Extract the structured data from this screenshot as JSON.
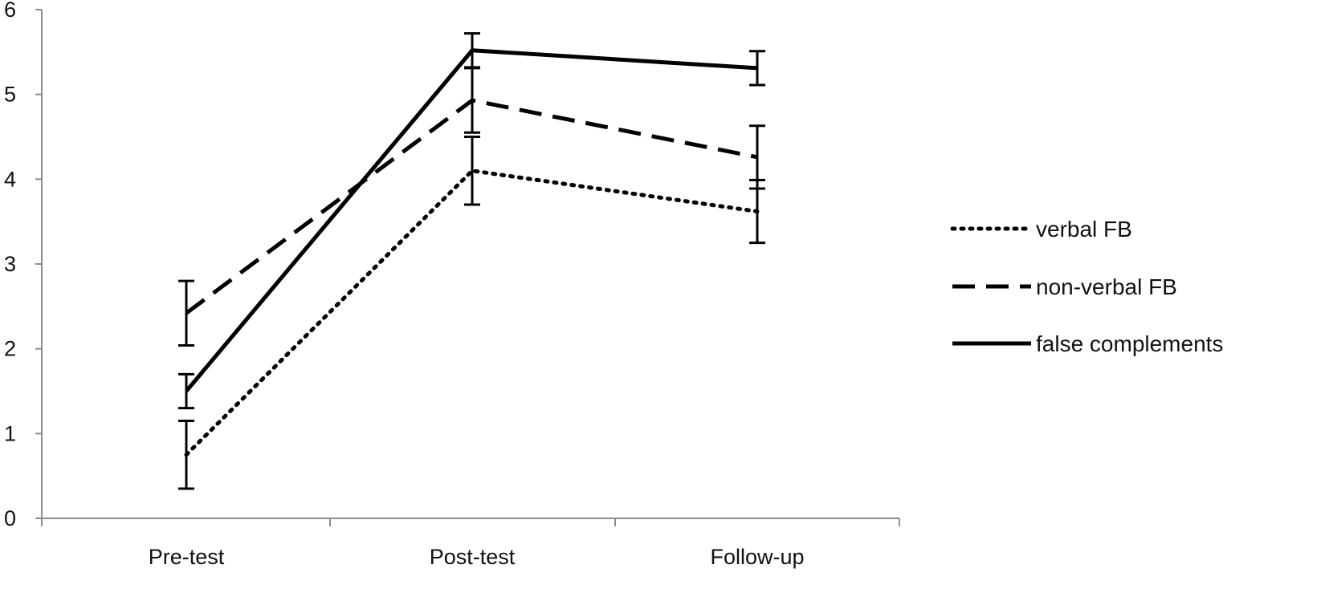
{
  "chart_data": {
    "type": "line",
    "title": "",
    "xlabel": "",
    "ylabel": "",
    "categories": [
      "Pre-test",
      "Post-test",
      "Follow-up"
    ],
    "ylim": [
      0,
      6
    ],
    "yticks": [
      0,
      1,
      2,
      3,
      4,
      5,
      6
    ],
    "grid": false,
    "legend_position": "right",
    "series": [
      {
        "name": "verbal FB",
        "style": "dotted",
        "color": "#000000",
        "values": [
          0.75,
          4.1,
          3.62
        ],
        "error": [
          0.4,
          0.4,
          0.37
        ]
      },
      {
        "name": "non-verbal FB",
        "style": "dashed",
        "color": "#000000",
        "values": [
          2.42,
          4.93,
          4.26
        ],
        "error": [
          0.38,
          0.38,
          0.37
        ]
      },
      {
        "name": "false complements",
        "style": "solid",
        "color": "#000000",
        "values": [
          1.5,
          5.52,
          5.31
        ],
        "error": [
          0.2,
          0.2,
          0.2
        ]
      }
    ]
  }
}
